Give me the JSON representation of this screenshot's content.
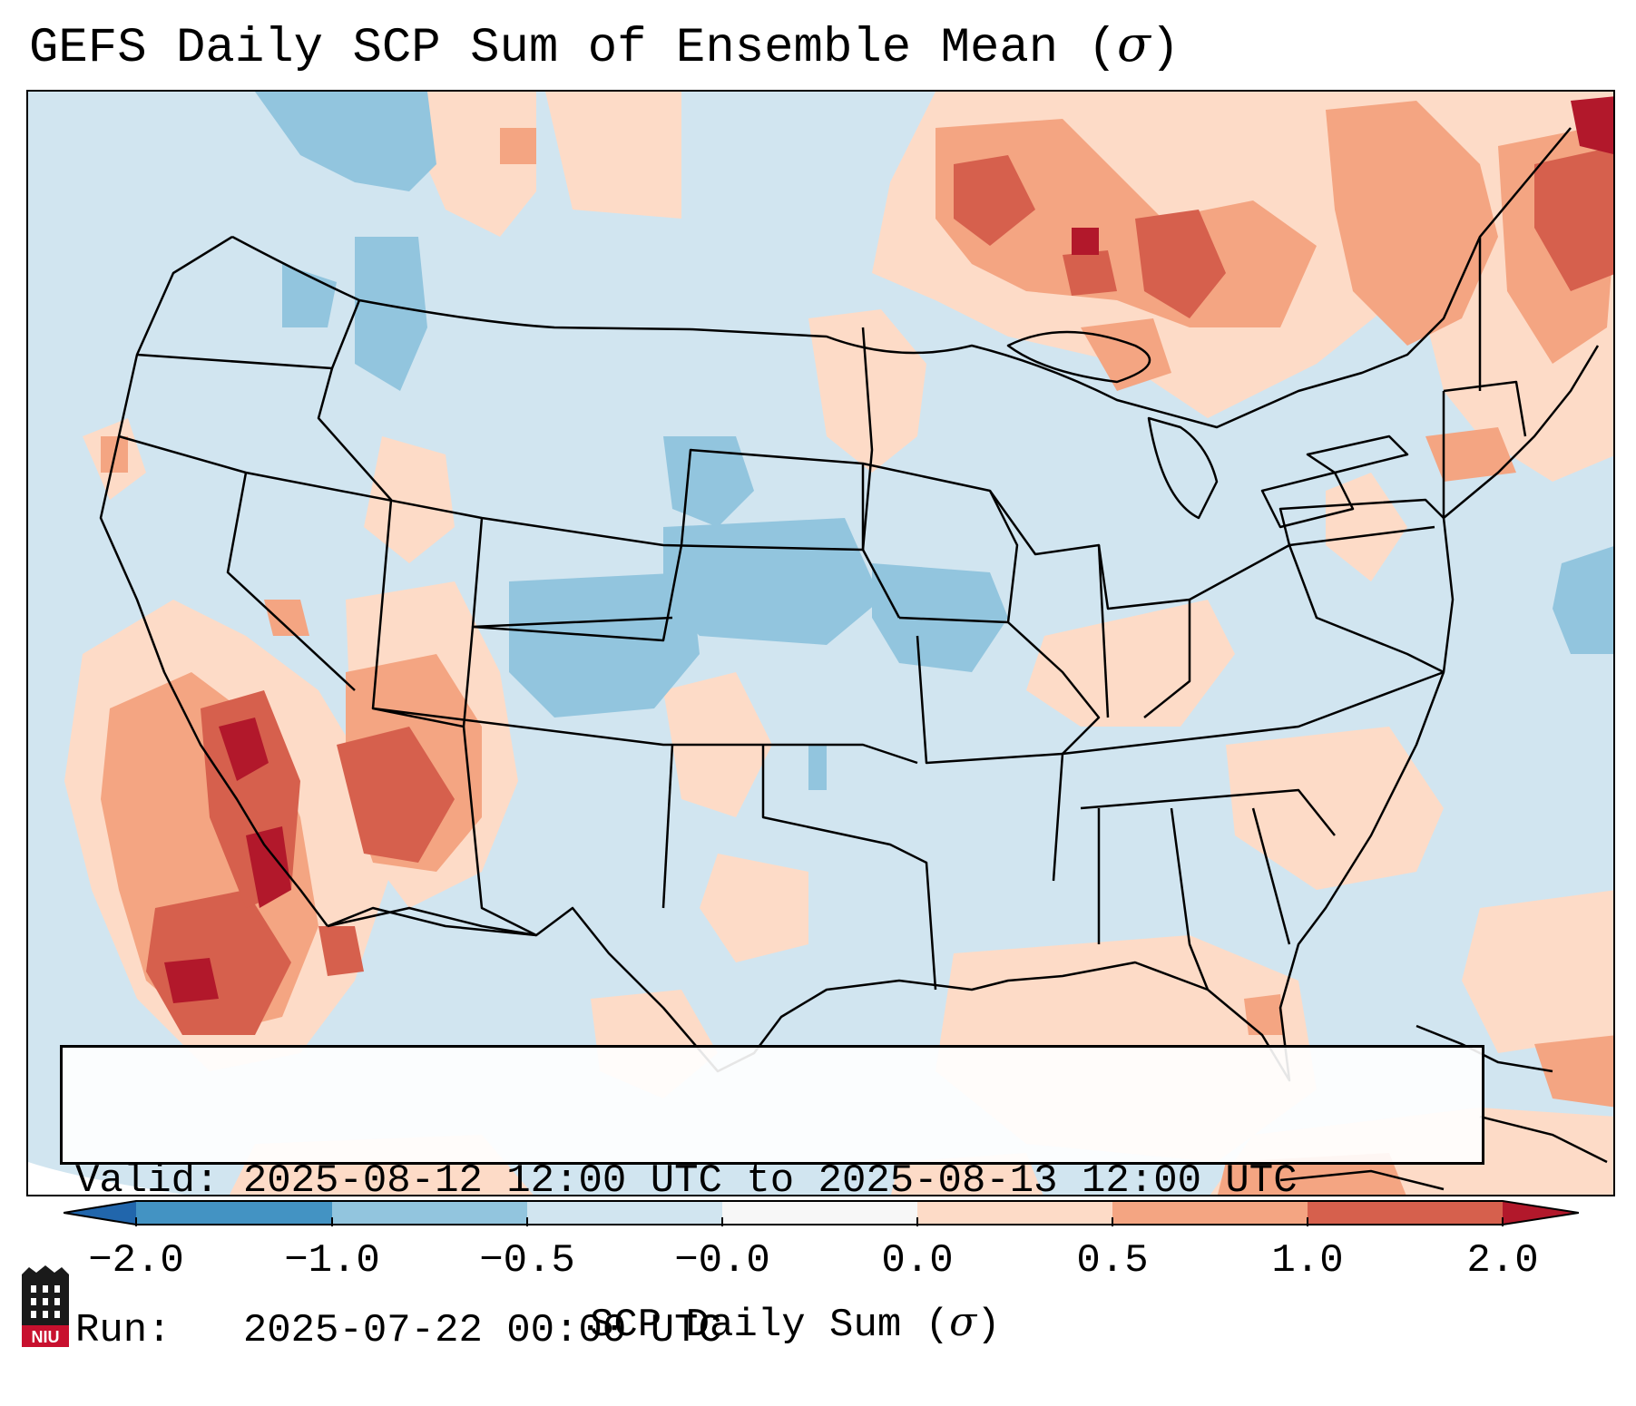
{
  "title": {
    "text": "GEFS Daily SCP Sum of Ensemble Mean (",
    "symbol": "σ",
    "close": ")"
  },
  "info": {
    "valid_line": "Valid: 2025-08-12 12:00 UTC to 2025-08-13 12:00 UTC",
    "run_line": "Run:   2025-07-22 00:00 UTC"
  },
  "colorbar": {
    "label_text": "SCP Daily Sum (",
    "label_symbol": "σ",
    "label_close": ")",
    "ticks": [
      "−2.0",
      "−1.0",
      "−0.5",
      "−0.0",
      "0.0",
      "0.5",
      "1.0",
      "2.0"
    ],
    "colors": {
      "lt_-2": "#2166ac",
      "-2_-1": "#4393c3",
      "-1_-0.5": "#92c5de",
      "-0.5_0": "#d1e5f0",
      "0_0.5": "#fddbc7",
      "0.5_1": "#f4a582",
      "1_2": "#d6604d",
      "gt_2": "#b2182b"
    }
  },
  "logo": {
    "text": "NIU",
    "color": "#c8102e"
  }
}
